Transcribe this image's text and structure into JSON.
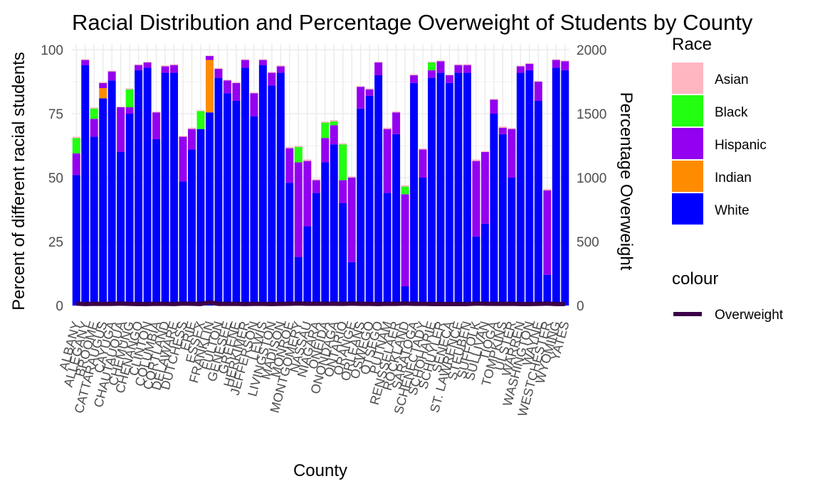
{
  "chart_data": {
    "type": "bar",
    "stacked": true,
    "title": "Racial Distribution and Percentage Overweight of Students by County",
    "xlabel": "County",
    "ylabel": "Percent of different racial students",
    "y2label": "Percentage Overweight",
    "ylim": [
      0,
      100
    ],
    "y2lim": [
      0,
      2000
    ],
    "yticks": [
      0,
      25,
      50,
      75,
      100
    ],
    "y2ticks": [
      0,
      500,
      1000,
      1500,
      2000
    ],
    "grid": true,
    "legend": {
      "position": "right",
      "race_title": "Race",
      "colour_title": "colour",
      "race_items": [
        {
          "name": "Asian",
          "color": "#FFB6C1"
        },
        {
          "name": "Black",
          "color": "#22FF11"
        },
        {
          "name": "Hispanic",
          "color": "#9400F0"
        },
        {
          "name": "Indian",
          "color": "#FF8C00"
        },
        {
          "name": "White",
          "color": "#0000FF"
        }
      ],
      "colour_items": [
        {
          "name": "Overweight",
          "color": "#3B0046"
        }
      ]
    },
    "categories": [
      "ALBANY",
      "ALLEGANY",
      "BROOME",
      "CATTARAUGUS",
      "CAYUGA",
      "CHAUTAUQUA",
      "CHEMUNG",
      "CHENANGO",
      "CLINTON",
      "COLUMBIA",
      "CORTLAND",
      "DELAWARE",
      "DUTCHESS",
      "ERIE",
      "ESSEX",
      "FRANKLIN",
      "FULTON",
      "GENESEE",
      "GREENE",
      "HERKIMER",
      "JEFFERSON",
      "LEWIS",
      "LIVINGSTON",
      "MADISON",
      "MONROE",
      "MONTGOMERY",
      "NASSAU",
      "NIAGARA",
      "ONEIDA",
      "ONONDAGA",
      "ONTARIO",
      "ORANGE",
      "ORLEANS",
      "OSWEGO",
      "OTSEGO",
      "PUTNAM",
      "RENSSELAER",
      "ROCKLAND",
      "SARATOGA",
      "SCHENECTADY",
      "SCHOHARIE",
      "SCHUYLER",
      "SENECA",
      "ST. LAWRENCE",
      "STEUBEN",
      "SUFFOLK",
      "SULLIVAN",
      "TIOGA",
      "TOMPKINS",
      "ULSTER",
      "WARREN",
      "WASHINGTON",
      "WAYNE",
      "WESTCHESTER",
      "WYOMING",
      "YATES"
    ],
    "series": [
      {
        "name": "Asian",
        "values": [
          0.5,
          0.3,
          0.4,
          0.3,
          0.3,
          0.3,
          0.4,
          0.3,
          0.3,
          0.3,
          0.4,
          0.3,
          0.3,
          0.5,
          0.3,
          0.3,
          0.4,
          0.3,
          0.3,
          0.3,
          0.3,
          0.3,
          0.3,
          0.4,
          0.5,
          0.4,
          0.6,
          0.4,
          0.4,
          0.5,
          0.4,
          0.5,
          0.3,
          0.4,
          0.3,
          0.5,
          0.4,
          0.5,
          0.4,
          0.4,
          0.3,
          0.3,
          0.3,
          0.3,
          0.3,
          0.6,
          0.4,
          0.3,
          0.5,
          0.4,
          0.3,
          0.3,
          0.3,
          0.6,
          0.3,
          0.3
        ]
      },
      {
        "name": "Black",
        "values": [
          6,
          0,
          4,
          0,
          0,
          0,
          7,
          0,
          0,
          0,
          0,
          0,
          0,
          0,
          7,
          0,
          0,
          0,
          0,
          0,
          0,
          0,
          0,
          0,
          0,
          6,
          0,
          0,
          6,
          1.5,
          14,
          0,
          0,
          0,
          0,
          0,
          0,
          3,
          0,
          0,
          3,
          0,
          0,
          0,
          0,
          0,
          0,
          0,
          0,
          0,
          0,
          0,
          0,
          0,
          0,
          0
        ]
      },
      {
        "name": "Hispanic",
        "values": [
          8.5,
          2,
          7,
          2,
          3.5,
          17.5,
          2.5,
          2,
          2,
          10.5,
          2.5,
          3,
          17.5,
          8,
          0,
          1.5,
          3.5,
          5,
          7,
          3,
          9,
          2,
          5,
          2.5,
          13.5,
          37,
          25.5,
          5,
          9.5,
          7.5,
          9,
          33,
          8.5,
          2.5,
          5,
          25,
          8.5,
          36,
          3,
          11,
          3,
          4.5,
          3,
          3,
          3,
          29.5,
          28,
          5.5,
          2.5,
          19,
          2.5,
          2.5,
          7.5,
          33,
          3,
          3.5
        ]
      },
      {
        "name": "Indian",
        "values": [
          0,
          0,
          0,
          4,
          0,
          0,
          0,
          0,
          0,
          0,
          0,
          0,
          0,
          0,
          0,
          20.5,
          0,
          0,
          0,
          0,
          0,
          0,
          0,
          0,
          0,
          0,
          0,
          0,
          0,
          0,
          0,
          0,
          0,
          0,
          0,
          0,
          0,
          0,
          0,
          0,
          0,
          0,
          0,
          0,
          0,
          0,
          0,
          0,
          0,
          0,
          0,
          0,
          0,
          0,
          0,
          0
        ]
      },
      {
        "name": "White",
        "values": [
          51,
          94,
          66,
          81,
          88,
          60,
          75,
          92,
          93,
          65,
          91,
          91,
          48.5,
          61,
          69,
          75.5,
          89,
          83,
          80,
          93,
          74,
          94,
          86,
          91,
          48,
          19,
          31,
          44,
          56,
          63,
          40,
          17,
          77,
          82,
          90,
          44,
          67,
          7.5,
          87,
          50,
          89,
          91,
          87,
          91,
          91,
          27,
          32,
          75,
          67,
          50,
          91,
          92,
          80,
          12,
          93,
          92
        ]
      }
    ],
    "overweight": {
      "name": "Overweight",
      "values": [
        15,
        12,
        14,
        13,
        13,
        15,
        13,
        12,
        12,
        14,
        13,
        12,
        15,
        14,
        12,
        25,
        13,
        13,
        13,
        12,
        13,
        13,
        12,
        13,
        14,
        16,
        14,
        14,
        14,
        14,
        13,
        15,
        13,
        13,
        12,
        14,
        13,
        15,
        13,
        14,
        12,
        12,
        12,
        12,
        12,
        15,
        14,
        13,
        13,
        14,
        12,
        12,
        13,
        15,
        12,
        12
      ]
    }
  }
}
